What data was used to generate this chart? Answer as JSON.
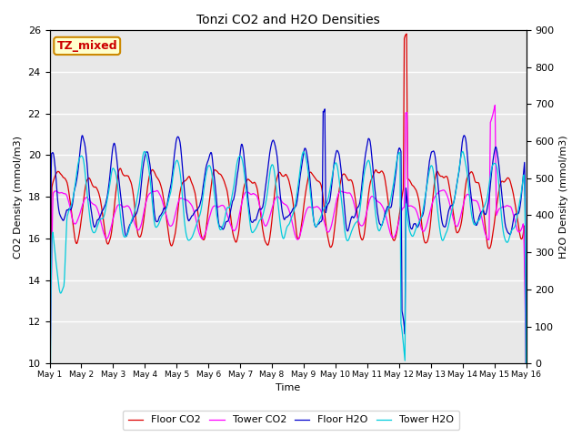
{
  "title": "Tonzi CO2 and H2O Densities",
  "xlabel": "Time",
  "ylabel_left": "CO2 Density (mmol/m3)",
  "ylabel_right": "H2O Density (mmol/m3)",
  "annotation": "TZ_mixed",
  "ylim_left": [
    10,
    26
  ],
  "ylim_right": [
    0,
    900
  ],
  "colors": {
    "floor_co2": "#dd0000",
    "tower_co2": "#ff00ff",
    "floor_h2o": "#0000cc",
    "tower_h2o": "#00ccdd"
  },
  "legend_labels": [
    "Floor CO2",
    "Tower CO2",
    "Floor H2O",
    "Tower H2O"
  ],
  "x_tick_labels": [
    "May 1",
    "May 2",
    "May 3",
    "May 4",
    "May 5",
    "May 6",
    "May 7",
    "May 8",
    "May 9",
    "May 10",
    "May 11",
    "May 12",
    "May 13",
    "May 14",
    "May 15",
    "May 16"
  ],
  "n_points": 1440,
  "background_color": "#e8e8e8",
  "linewidth": 0.9
}
